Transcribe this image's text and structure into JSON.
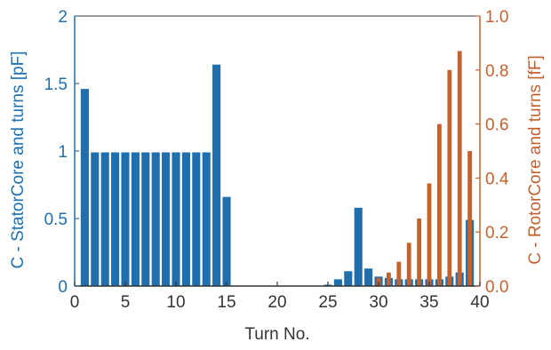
{
  "chart_data": {
    "type": "bar",
    "xlabel": "Turn No.",
    "xlim": [
      0,
      40
    ],
    "x_ticks": [
      "0",
      "5",
      "10",
      "15",
      "20",
      "25",
      "30",
      "35",
      "40"
    ],
    "left_axis": {
      "label": "C - StatorCore and turns [pF]",
      "ylim": [
        0,
        2
      ],
      "ticks": [
        "0",
        "0.5",
        "1",
        "1.5",
        "2"
      ],
      "color": "#1f6fae"
    },
    "right_axis": {
      "label": "C - RotorCore and turns [fF]",
      "ylim": [
        0,
        1
      ],
      "ticks": [
        "0.0",
        "0.2",
        "0.4",
        "0.6",
        "0.8",
        "1.0"
      ],
      "color": "#c5612d"
    },
    "series": [
      {
        "axis": "left",
        "color": "#1f6fae",
        "x": [
          1,
          2,
          3,
          4,
          5,
          6,
          7,
          8,
          9,
          10,
          11,
          12,
          13,
          14,
          15,
          16,
          17,
          18,
          19,
          20,
          21,
          22,
          23,
          24,
          25,
          26,
          27,
          28,
          29,
          30,
          31,
          32,
          33,
          34,
          35,
          36,
          37,
          38,
          39
        ],
        "values": [
          1.46,
          0.99,
          0.99,
          0.99,
          0.99,
          0.99,
          0.99,
          0.99,
          0.99,
          0.99,
          0.99,
          0.99,
          0.99,
          1.64,
          0.66,
          0,
          0,
          0,
          0,
          0,
          0,
          0,
          0,
          0,
          0.01,
          0.05,
          0.11,
          0.58,
          0.13,
          0.07,
          0.06,
          0.05,
          0.05,
          0.05,
          0.05,
          0.05,
          0.07,
          0.1,
          0.49
        ]
      },
      {
        "axis": "right",
        "color": "#c5612d",
        "x": [
          30,
          31,
          32,
          33,
          34,
          35,
          36,
          37,
          38,
          39
        ],
        "values": [
          0.03,
          0.05,
          0.09,
          0.16,
          0.25,
          0.38,
          0.6,
          0.8,
          0.87,
          0.5
        ]
      }
    ],
    "grid": false
  }
}
